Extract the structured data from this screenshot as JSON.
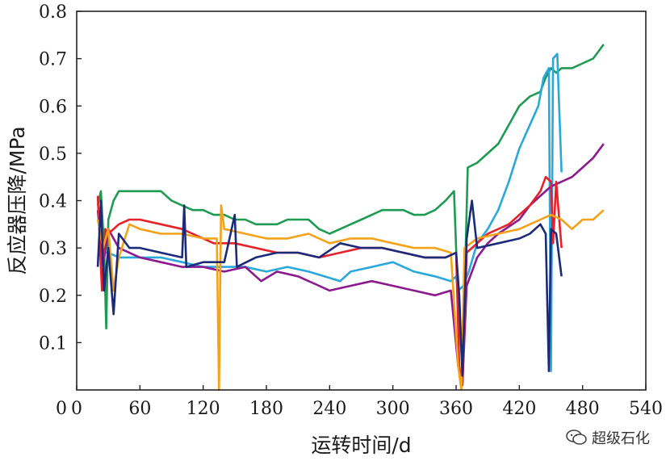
{
  "chart_data": {
    "type": "line",
    "xlabel": "运转时间/d",
    "ylabel": "反应器压降/MPa",
    "xlim": [
      0,
      540
    ],
    "ylim": [
      0,
      0.8
    ],
    "x_ticks": [
      "0",
      "60",
      "120",
      "180",
      "240",
      "300",
      "360",
      "420",
      "480",
      "540"
    ],
    "y_ticks": [
      "0.1",
      "0.2",
      "0.3",
      "0.4",
      "0.5",
      "0.6",
      "0.7",
      "0.8"
    ],
    "grid": false,
    "legend": "none",
    "series": [
      {
        "color": "#1e9a52",
        "points": [
          [
            20,
            0.39
          ],
          [
            23,
            0.42
          ],
          [
            26,
            0.3
          ],
          [
            28,
            0.13
          ],
          [
            30,
            0.36
          ],
          [
            35,
            0.4
          ],
          [
            40,
            0.42
          ],
          [
            50,
            0.42
          ],
          [
            60,
            0.42
          ],
          [
            70,
            0.42
          ],
          [
            80,
            0.42
          ],
          [
            90,
            0.4
          ],
          [
            100,
            0.39
          ],
          [
            110,
            0.38
          ],
          [
            120,
            0.38
          ],
          [
            130,
            0.37
          ],
          [
            140,
            0.37
          ],
          [
            150,
            0.36
          ],
          [
            160,
            0.36
          ],
          [
            170,
            0.35
          ],
          [
            180,
            0.35
          ],
          [
            190,
            0.35
          ],
          [
            200,
            0.36
          ],
          [
            210,
            0.36
          ],
          [
            220,
            0.36
          ],
          [
            230,
            0.34
          ],
          [
            240,
            0.33
          ],
          [
            250,
            0.34
          ],
          [
            260,
            0.35
          ],
          [
            270,
            0.36
          ],
          [
            280,
            0.37
          ],
          [
            290,
            0.38
          ],
          [
            300,
            0.38
          ],
          [
            310,
            0.38
          ],
          [
            320,
            0.37
          ],
          [
            330,
            0.37
          ],
          [
            340,
            0.38
          ],
          [
            350,
            0.4
          ],
          [
            358,
            0.42
          ],
          [
            362,
            0.18
          ],
          [
            366,
            0.05
          ],
          [
            368,
            0.2
          ],
          [
            371,
            0.47
          ],
          [
            380,
            0.48
          ],
          [
            390,
            0.5
          ],
          [
            400,
            0.52
          ],
          [
            410,
            0.56
          ],
          [
            420,
            0.6
          ],
          [
            430,
            0.62
          ],
          [
            440,
            0.63
          ],
          [
            445,
            0.66
          ],
          [
            450,
            0.68
          ],
          [
            455,
            0.67
          ],
          [
            460,
            0.68
          ],
          [
            470,
            0.68
          ],
          [
            480,
            0.69
          ],
          [
            490,
            0.7
          ],
          [
            500,
            0.73
          ]
        ]
      },
      {
        "color": "#29a8dc",
        "points": [
          [
            20,
            0.29
          ],
          [
            30,
            0.29
          ],
          [
            40,
            0.28
          ],
          [
            60,
            0.28
          ],
          [
            80,
            0.28
          ],
          [
            100,
            0.27
          ],
          [
            120,
            0.26
          ],
          [
            140,
            0.26
          ],
          [
            160,
            0.26
          ],
          [
            180,
            0.25
          ],
          [
            200,
            0.26
          ],
          [
            220,
            0.25
          ],
          [
            235,
            0.24
          ],
          [
            250,
            0.23
          ],
          [
            260,
            0.25
          ],
          [
            280,
            0.26
          ],
          [
            300,
            0.27
          ],
          [
            320,
            0.25
          ],
          [
            340,
            0.24
          ],
          [
            355,
            0.23
          ],
          [
            360,
            0.24
          ],
          [
            362,
            0.21
          ],
          [
            367,
            0.22
          ],
          [
            372,
            0.25
          ],
          [
            380,
            0.31
          ],
          [
            390,
            0.34
          ],
          [
            400,
            0.38
          ],
          [
            410,
            0.44
          ],
          [
            420,
            0.51
          ],
          [
            430,
            0.56
          ],
          [
            438,
            0.6
          ],
          [
            443,
            0.66
          ],
          [
            448,
            0.68
          ],
          [
            450,
            0.04
          ],
          [
            452,
            0.7
          ],
          [
            456,
            0.71
          ],
          [
            460,
            0.46
          ]
        ]
      },
      {
        "color": "#8b1a8e",
        "points": [
          [
            20,
            0.38
          ],
          [
            25,
            0.26
          ],
          [
            30,
            0.34
          ],
          [
            40,
            0.3
          ],
          [
            60,
            0.28
          ],
          [
            80,
            0.27
          ],
          [
            100,
            0.26
          ],
          [
            120,
            0.26
          ],
          [
            140,
            0.25
          ],
          [
            160,
            0.26
          ],
          [
            175,
            0.23
          ],
          [
            190,
            0.25
          ],
          [
            210,
            0.24
          ],
          [
            230,
            0.22
          ],
          [
            240,
            0.21
          ],
          [
            260,
            0.22
          ],
          [
            280,
            0.23
          ],
          [
            300,
            0.22
          ],
          [
            320,
            0.21
          ],
          [
            340,
            0.2
          ],
          [
            355,
            0.21
          ],
          [
            362,
            0.05
          ],
          [
            366,
            0.01
          ],
          [
            370,
            0.22
          ],
          [
            380,
            0.28
          ],
          [
            390,
            0.31
          ],
          [
            400,
            0.33
          ],
          [
            420,
            0.36
          ],
          [
            430,
            0.39
          ],
          [
            440,
            0.41
          ],
          [
            450,
            0.43
          ],
          [
            460,
            0.44
          ],
          [
            470,
            0.45
          ],
          [
            480,
            0.47
          ],
          [
            490,
            0.49
          ],
          [
            500,
            0.52
          ]
        ]
      },
      {
        "color": "#e8202a",
        "points": [
          [
            20,
            0.41
          ],
          [
            24,
            0.21
          ],
          [
            27,
            0.34
          ],
          [
            30,
            0.33
          ],
          [
            40,
            0.35
          ],
          [
            50,
            0.36
          ],
          [
            60,
            0.36
          ],
          [
            80,
            0.35
          ],
          [
            100,
            0.34
          ],
          [
            110,
            0.33
          ],
          [
            130,
            0.31
          ],
          [
            150,
            0.31
          ],
          [
            170,
            0.3
          ],
          [
            190,
            0.29
          ],
          [
            210,
            0.29
          ],
          [
            230,
            0.28
          ],
          [
            250,
            0.29
          ],
          [
            270,
            0.3
          ],
          [
            290,
            0.3
          ],
          [
            310,
            0.29
          ],
          [
            330,
            0.28
          ],
          [
            350,
            0.28
          ],
          [
            360,
            0.29
          ],
          [
            363,
            0.05
          ],
          [
            366,
            0.01
          ],
          [
            370,
            0.29
          ],
          [
            390,
            0.33
          ],
          [
            410,
            0.35
          ],
          [
            420,
            0.37
          ],
          [
            430,
            0.39
          ],
          [
            440,
            0.42
          ],
          [
            445,
            0.45
          ],
          [
            450,
            0.44
          ],
          [
            452,
            0.31
          ],
          [
            455,
            0.44
          ],
          [
            460,
            0.3
          ]
        ]
      },
      {
        "color": "#f4a21a",
        "points": [
          [
            20,
            0.36
          ],
          [
            25,
            0.3
          ],
          [
            30,
            0.34
          ],
          [
            35,
            0.21
          ],
          [
            40,
            0.28
          ],
          [
            50,
            0.35
          ],
          [
            60,
            0.34
          ],
          [
            80,
            0.33
          ],
          [
            100,
            0.33
          ],
          [
            120,
            0.32
          ],
          [
            133,
            0.32
          ],
          [
            135,
            0.0
          ],
          [
            137,
            0.39
          ],
          [
            140,
            0.34
          ],
          [
            160,
            0.33
          ],
          [
            180,
            0.32
          ],
          [
            200,
            0.32
          ],
          [
            220,
            0.33
          ],
          [
            240,
            0.31
          ],
          [
            260,
            0.32
          ],
          [
            280,
            0.32
          ],
          [
            300,
            0.31
          ],
          [
            320,
            0.3
          ],
          [
            340,
            0.3
          ],
          [
            355,
            0.29
          ],
          [
            362,
            0.05
          ],
          [
            365,
            0.0
          ],
          [
            368,
            0.3
          ],
          [
            380,
            0.32
          ],
          [
            400,
            0.33
          ],
          [
            420,
            0.34
          ],
          [
            440,
            0.36
          ],
          [
            450,
            0.37
          ],
          [
            460,
            0.36
          ],
          [
            470,
            0.34
          ],
          [
            480,
            0.36
          ],
          [
            490,
            0.36
          ],
          [
            500,
            0.38
          ]
        ]
      },
      {
        "color": "#1c2a7a",
        "points": [
          [
            20,
            0.26
          ],
          [
            23,
            0.4
          ],
          [
            26,
            0.21
          ],
          [
            30,
            0.3
          ],
          [
            35,
            0.16
          ],
          [
            40,
            0.33
          ],
          [
            50,
            0.3
          ],
          [
            60,
            0.3
          ],
          [
            80,
            0.29
          ],
          [
            100,
            0.28
          ],
          [
            102,
            0.39
          ],
          [
            104,
            0.26
          ],
          [
            120,
            0.27
          ],
          [
            140,
            0.27
          ],
          [
            150,
            0.37
          ],
          [
            152,
            0.26
          ],
          [
            170,
            0.28
          ],
          [
            190,
            0.29
          ],
          [
            210,
            0.29
          ],
          [
            230,
            0.28
          ],
          [
            250,
            0.31
          ],
          [
            270,
            0.3
          ],
          [
            290,
            0.3
          ],
          [
            310,
            0.29
          ],
          [
            330,
            0.28
          ],
          [
            350,
            0.28
          ],
          [
            360,
            0.29
          ],
          [
            363,
            0.2
          ],
          [
            366,
            0.03
          ],
          [
            370,
            0.32
          ],
          [
            375,
            0.4
          ],
          [
            380,
            0.3
          ],
          [
            400,
            0.31
          ],
          [
            420,
            0.32
          ],
          [
            430,
            0.33
          ],
          [
            440,
            0.35
          ],
          [
            445,
            0.33
          ],
          [
            448,
            0.04
          ],
          [
            450,
            0.34
          ],
          [
            455,
            0.33
          ],
          [
            460,
            0.24
          ]
        ]
      }
    ]
  },
  "watermark": {
    "text": "超级石化",
    "icon": "wechat-icon"
  }
}
